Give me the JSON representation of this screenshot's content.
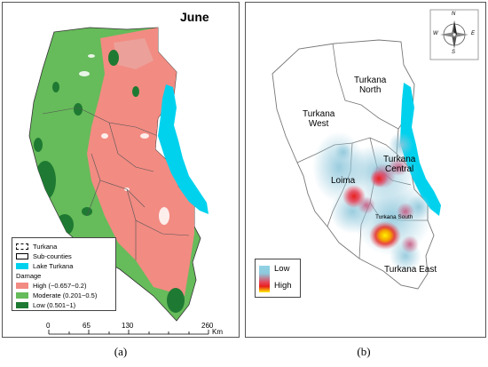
{
  "panel_a": {
    "title": "June",
    "caption": "(a)",
    "legend": {
      "turkana": "Turkana",
      "subcounties": "Sub-counties",
      "lake": "Lake Turkana",
      "damage_header": "Damage",
      "classes": [
        {
          "label": "High (−0.657−0.2)",
          "color": "#f28b82"
        },
        {
          "label": "Moderate (0.201−0.5)",
          "color": "#66bb5a"
        },
        {
          "label": "Low (0.501−1)",
          "color": "#1e7a32"
        }
      ]
    },
    "scale_bar": {
      "ticks": [
        "0",
        "65",
        "130",
        "260"
      ],
      "unit": "Km"
    }
  },
  "panel_b": {
    "caption": "(b)",
    "regions": {
      "north_1": "Turkana",
      "north_2": "North",
      "west_1": "Turkana",
      "west_2": "West",
      "central_1": "Turkana",
      "central_2": "Central",
      "loima": "Loima",
      "south": "Turkana South",
      "east": "Turkana East"
    },
    "legend": {
      "low": "Low",
      "high": "High"
    },
    "compass": {
      "n": "N",
      "s": "S",
      "e": "E",
      "w": "W"
    }
  },
  "colors": {
    "lake": "#00d2ee",
    "high": "#f28b82",
    "moderate": "#66bb5a",
    "low": "#1e7a32"
  }
}
